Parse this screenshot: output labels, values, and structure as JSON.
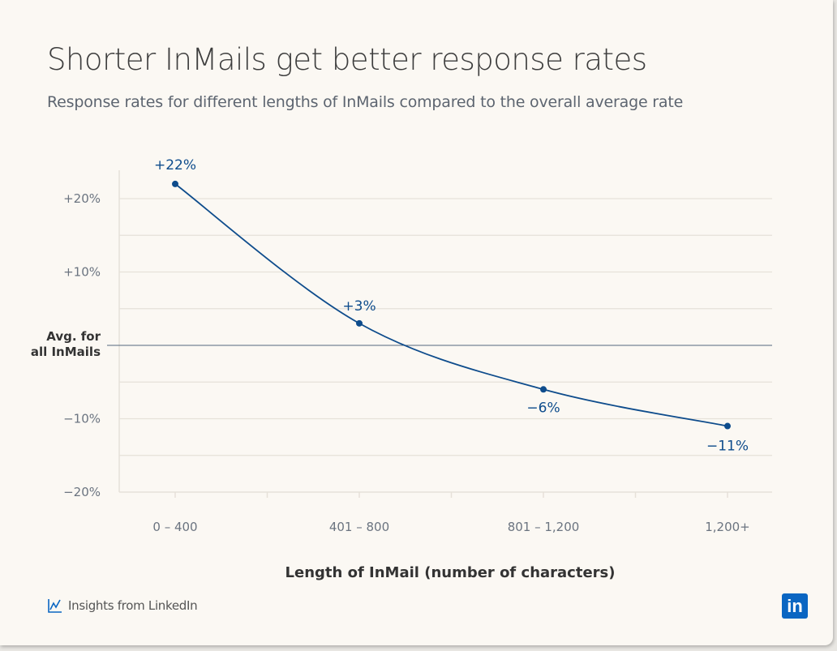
{
  "title": "Shorter InMails get better response rates",
  "subtitle": "Response rates for different lengths of InMails compared to the overall average rate",
  "footer": {
    "text": "Insights from LinkedIn",
    "icon": "trend-chart-icon",
    "logo": "in"
  },
  "colors": {
    "line": "#0e4c8c",
    "grid": "#e6e1d9",
    "text": "#6b7480",
    "logo": "#0a66c2"
  },
  "chart_data": {
    "type": "line",
    "categories": [
      "0 – 400",
      "401 – 800",
      "801 – 1,200",
      "1,200+"
    ],
    "values": [
      22,
      3,
      -6,
      -11
    ],
    "data_labels": [
      "+22%",
      "+3%",
      "−6%",
      "−11%"
    ],
    "xlabel": "Length of InMail (number of characters)",
    "ylabel": "",
    "ylim": [
      -20,
      20
    ],
    "yticks": [
      20,
      10,
      0,
      -10,
      -20
    ],
    "ytick_labels": [
      "+20%",
      "+10%",
      "Avg. for all InMails",
      "−10%",
      "−20%"
    ],
    "grid": true
  }
}
